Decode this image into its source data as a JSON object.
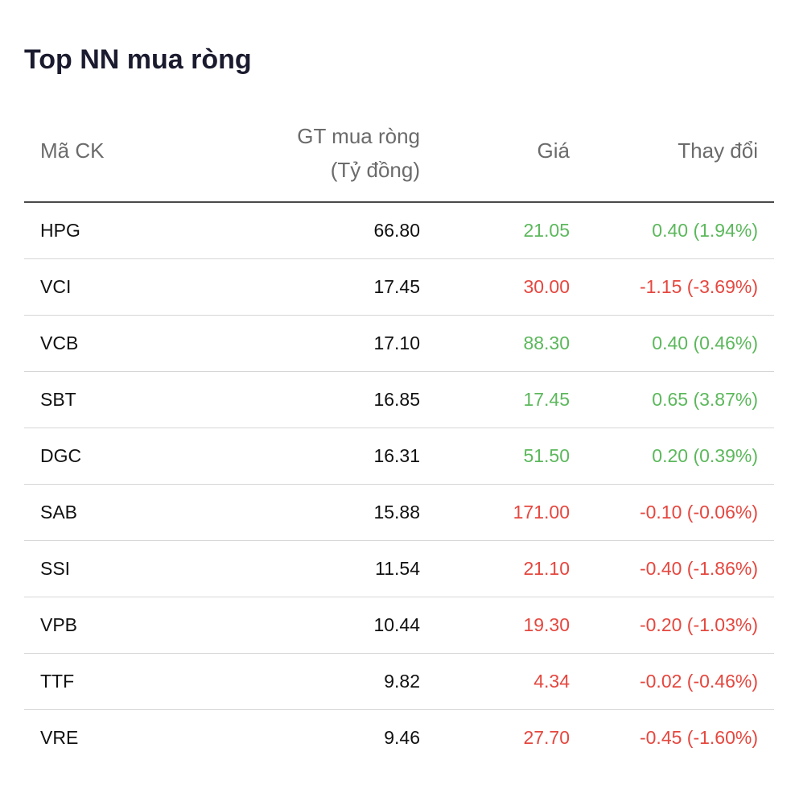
{
  "title": "Top NN mua ròng",
  "columns": {
    "code": "Mã CK",
    "value_line1": "GT mua ròng",
    "value_line2": "(Tỷ đồng)",
    "price": "Giá",
    "change": "Thay đổi"
  },
  "colors": {
    "up": "#5cb85c",
    "down": "#e5473f"
  },
  "rows": [
    {
      "code": "HPG",
      "value": "66.80",
      "price": "21.05",
      "change": "0.40 (1.94%)",
      "direction": "up"
    },
    {
      "code": "VCI",
      "value": "17.45",
      "price": "30.00",
      "change": "-1.15 (-3.69%)",
      "direction": "down"
    },
    {
      "code": "VCB",
      "value": "17.10",
      "price": "88.30",
      "change": "0.40 (0.46%)",
      "direction": "up"
    },
    {
      "code": "SBT",
      "value": "16.85",
      "price": "17.45",
      "change": "0.65 (3.87%)",
      "direction": "up"
    },
    {
      "code": "DGC",
      "value": "16.31",
      "price": "51.50",
      "change": "0.20 (0.39%)",
      "direction": "up"
    },
    {
      "code": "SAB",
      "value": "15.88",
      "price": "171.00",
      "change": "-0.10 (-0.06%)",
      "direction": "down"
    },
    {
      "code": "SSI",
      "value": "11.54",
      "price": "21.10",
      "change": "-0.40 (-1.86%)",
      "direction": "down"
    },
    {
      "code": "VPB",
      "value": "10.44",
      "price": "19.30",
      "change": "-0.20 (-1.03%)",
      "direction": "down"
    },
    {
      "code": "TTF",
      "value": "9.82",
      "price": "4.34",
      "change": "-0.02 (-0.46%)",
      "direction": "down"
    },
    {
      "code": "VRE",
      "value": "9.46",
      "price": "27.70",
      "change": "-0.45 (-1.60%)",
      "direction": "down"
    }
  ]
}
